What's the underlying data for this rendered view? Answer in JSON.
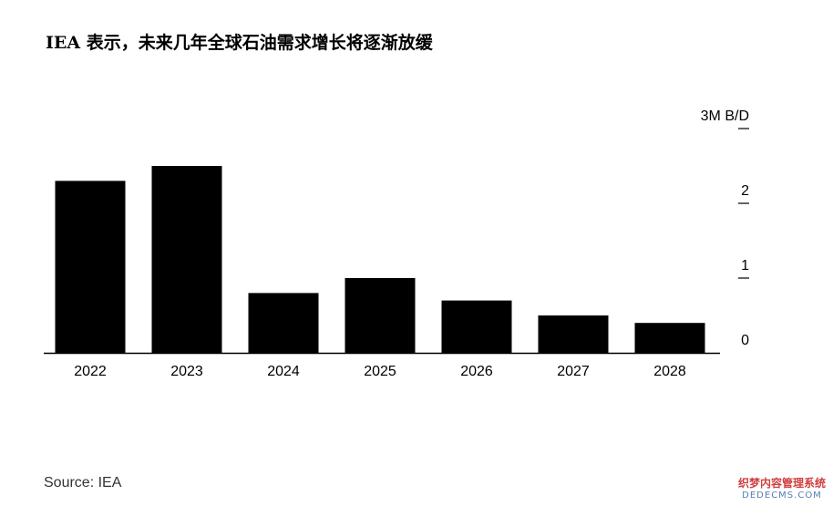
{
  "title": "IEA 表示，未来几年全球石油需求增长将逐渐放缓",
  "source": "Source: IEA",
  "watermark": {
    "line1": "织梦内容管理系统",
    "line2": "DEDECMS.COM"
  },
  "colors": {
    "bar": "#000000",
    "axis": "#000000",
    "text": "#000000",
    "source": "#333333"
  },
  "chart_data": {
    "type": "bar",
    "title": "",
    "xlabel": "",
    "ylabel": "",
    "unit": "3M B/D",
    "categories": [
      "2022",
      "2023",
      "2024",
      "2025",
      "2026",
      "2027",
      "2028"
    ],
    "values": [
      2.3,
      2.5,
      0.8,
      1.0,
      0.7,
      0.5,
      0.4
    ],
    "ylim": [
      0,
      3
    ],
    "yticks": [
      "0",
      "1",
      "2",
      "3M B/D"
    ],
    "grid": false,
    "legend": "none"
  }
}
